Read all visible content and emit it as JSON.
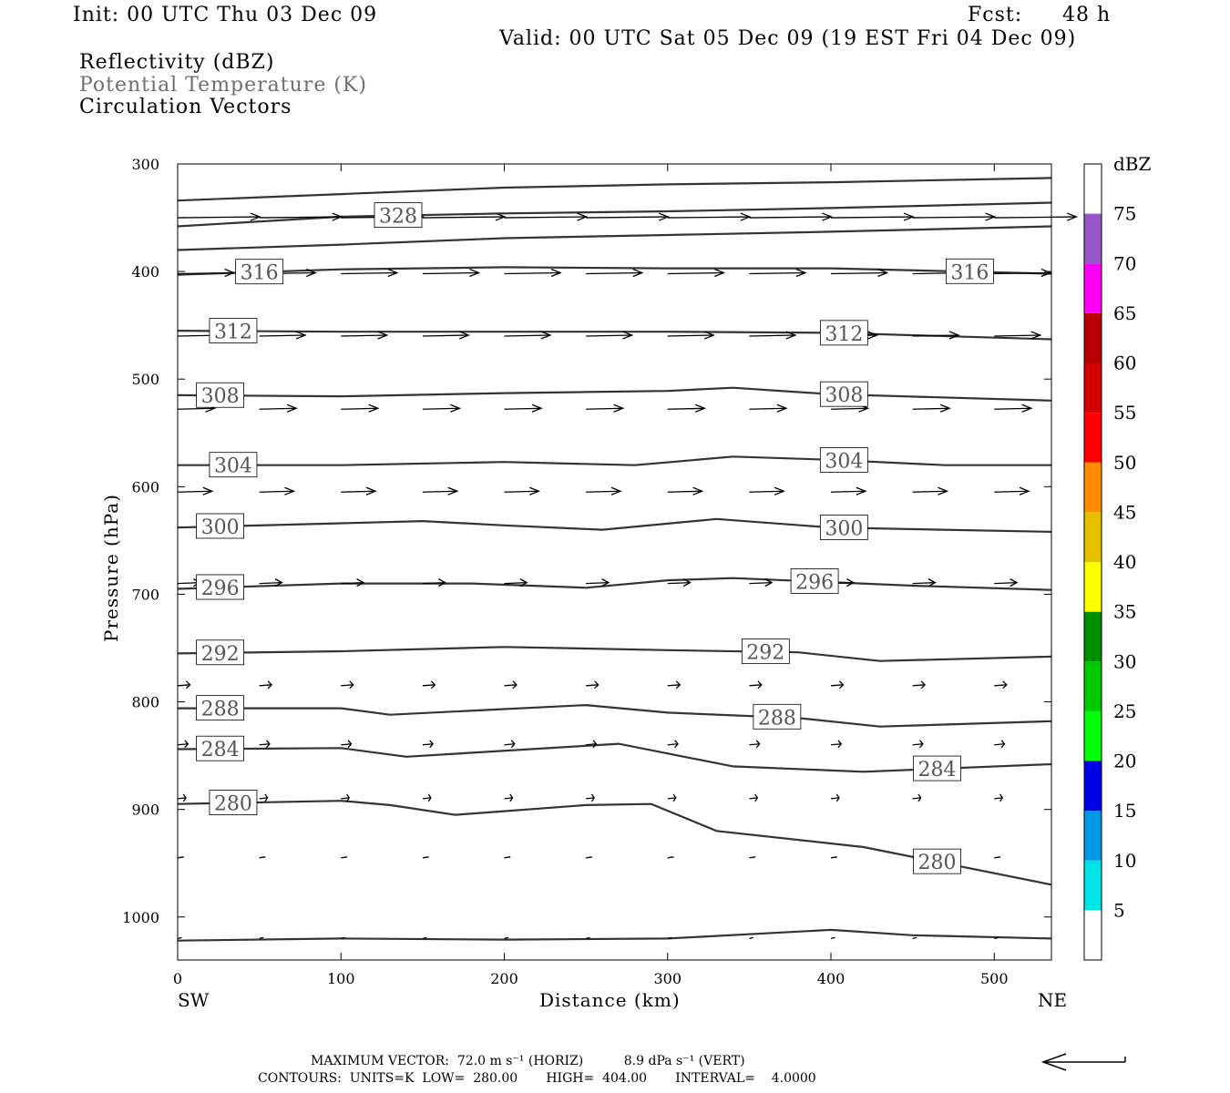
{
  "header": {
    "init": "Init: 00 UTC Thu 03 Dec 09",
    "fcst_label": "Fcst:",
    "fcst_value": "48 h",
    "valid": "Valid: 00 UTC Sat 05 Dec 09 (19 EST Fri 04 Dec 09)"
  },
  "fields": {
    "reflectivity": "Reflectivity (dBZ)",
    "theta": "Potential Temperature (K)",
    "vectors": "Circulation Vectors"
  },
  "footer": {
    "max_vector": "MAXIMUM VECTOR:  72.0 m s⁻¹ (HORIZ)          8.9 dPa s⁻¹ (VERT)",
    "contours": "CONTOURS:  UNITS=K  LOW=  280.00       HIGH=  404.00       INTERVAL=    4.0000"
  },
  "colors": {
    "contour": "#333333",
    "vector": "#000000",
    "scale": [
      "#00e5e5",
      "#0099e6",
      "#0000e6",
      "#00ff00",
      "#00c800",
      "#008c00",
      "#ffff00",
      "#e6c000",
      "#ff8c00",
      "#ff0000",
      "#d40000",
      "#b40000",
      "#ff00ff",
      "#9955cc"
    ]
  },
  "chart_data": {
    "type": "cross-section",
    "xlabel": "Distance (km)",
    "ylabel": "Pressure (hPa)",
    "xlim": [
      0,
      535
    ],
    "ylim": [
      300,
      1040
    ],
    "x_ticks": [
      "0",
      "100",
      "200",
      "300",
      "400",
      "500"
    ],
    "y_ticks": [
      "300",
      "400",
      "500",
      "600",
      "700",
      "800",
      "900",
      "1000"
    ],
    "x_end_labels": {
      "left": "SW",
      "right": "NE"
    },
    "colorbar": {
      "unit": "dBZ",
      "labels": [
        "5",
        "10",
        "15",
        "20",
        "25",
        "30",
        "35",
        "40",
        "45",
        "50",
        "55",
        "60",
        "65",
        "70",
        "75"
      ]
    },
    "contours": [
      {
        "label": "",
        "pts": [
          [
            0,
            334
          ],
          [
            100,
            328
          ],
          [
            200,
            322
          ],
          [
            300,
            319
          ],
          [
            400,
            317
          ],
          [
            535,
            313
          ]
        ]
      },
      {
        "label": "328",
        "label_x": 135,
        "pts": [
          [
            0,
            358
          ],
          [
            100,
            349
          ],
          [
            200,
            346
          ],
          [
            300,
            344
          ],
          [
            400,
            341
          ],
          [
            535,
            336
          ]
        ]
      },
      {
        "label": "",
        "pts": [
          [
            0,
            380
          ],
          [
            100,
            375
          ],
          [
            200,
            369
          ],
          [
            300,
            366
          ],
          [
            400,
            363
          ],
          [
            535,
            358
          ]
        ]
      },
      {
        "label": "316",
        "label_xs": [
          50,
          485
        ],
        "pts": [
          [
            0,
            403
          ],
          [
            100,
            398
          ],
          [
            200,
            396
          ],
          [
            300,
            397
          ],
          [
            400,
            397
          ],
          [
            535,
            402
          ]
        ]
      },
      {
        "label": "312",
        "label_xs": [
          34,
          408
        ],
        "pts": [
          [
            0,
            455
          ],
          [
            100,
            456
          ],
          [
            200,
            456
          ],
          [
            300,
            456
          ],
          [
            400,
            457
          ],
          [
            535,
            463
          ]
        ]
      },
      {
        "label": "308",
        "label_xs": [
          26,
          408
        ],
        "pts": [
          [
            0,
            515
          ],
          [
            100,
            516
          ],
          [
            200,
            513
          ],
          [
            250,
            512
          ],
          [
            300,
            511
          ],
          [
            340,
            508
          ],
          [
            400,
            514
          ],
          [
            535,
            520
          ]
        ]
      },
      {
        "label": "304",
        "label_xs": [
          34,
          408
        ],
        "pts": [
          [
            0,
            580
          ],
          [
            100,
            580
          ],
          [
            200,
            577
          ],
          [
            280,
            580
          ],
          [
            340,
            572
          ],
          [
            400,
            575
          ],
          [
            470,
            580
          ],
          [
            535,
            580
          ]
        ]
      },
      {
        "label": "300",
        "label_xs": [
          26,
          408
        ],
        "pts": [
          [
            0,
            638
          ],
          [
            100,
            634
          ],
          [
            150,
            632
          ],
          [
            200,
            636
          ],
          [
            260,
            640
          ],
          [
            330,
            630
          ],
          [
            400,
            638
          ],
          [
            535,
            642
          ]
        ]
      },
      {
        "label": "296",
        "label_xs": [
          26,
          390
        ],
        "pts": [
          [
            0,
            695
          ],
          [
            100,
            690
          ],
          [
            180,
            690
          ],
          [
            250,
            694
          ],
          [
            300,
            687
          ],
          [
            340,
            685
          ],
          [
            450,
            692
          ],
          [
            535,
            696
          ]
        ]
      },
      {
        "label": "292",
        "label_xs": [
          26,
          360
        ],
        "pts": [
          [
            0,
            755
          ],
          [
            100,
            753
          ],
          [
            200,
            749
          ],
          [
            300,
            752
          ],
          [
            380,
            754
          ],
          [
            430,
            762
          ],
          [
            535,
            758
          ]
        ]
      },
      {
        "label": "288",
        "label_xs": [
          26,
          367
        ],
        "pts": [
          [
            0,
            806
          ],
          [
            100,
            806
          ],
          [
            130,
            812
          ],
          [
            250,
            803
          ],
          [
            300,
            810
          ],
          [
            380,
            815
          ],
          [
            430,
            823
          ],
          [
            535,
            818
          ]
        ]
      },
      {
        "label": "284",
        "label_xs": [
          26,
          465
        ],
        "pts": [
          [
            0,
            844
          ],
          [
            100,
            843
          ],
          [
            140,
            851
          ],
          [
            270,
            839
          ],
          [
            340,
            860
          ],
          [
            420,
            865
          ],
          [
            535,
            858
          ]
        ]
      },
      {
        "label": "280",
        "label_xs": [
          34,
          465
        ],
        "pts": [
          [
            0,
            895
          ],
          [
            100,
            892
          ],
          [
            130,
            896
          ],
          [
            170,
            905
          ],
          [
            250,
            896
          ],
          [
            290,
            895
          ],
          [
            330,
            920
          ],
          [
            420,
            935
          ],
          [
            535,
            970
          ]
        ]
      },
      {
        "label": "",
        "pts": [
          [
            0,
            1022
          ],
          [
            100,
            1020
          ],
          [
            200,
            1021
          ],
          [
            300,
            1020
          ],
          [
            400,
            1012
          ],
          [
            450,
            1017
          ],
          [
            535,
            1020
          ]
        ]
      }
    ],
    "vector_rows": [
      {
        "p": 350,
        "dx": 50,
        "mag": 1.0
      },
      {
        "p": 402,
        "dx": 38,
        "mag": 0.9
      },
      {
        "p": 460,
        "dx": 35,
        "mag": 0.8
      },
      {
        "p": 528,
        "dx": 30,
        "mag": 0.75
      },
      {
        "p": 605,
        "dx": 30,
        "mag": 0.7
      },
      {
        "p": 690,
        "dx": 25,
        "mag": 0.55
      },
      {
        "p": 785,
        "dx": 25,
        "mag": 0.3
      },
      {
        "p": 840,
        "dx": 25,
        "mag": 0.25
      },
      {
        "p": 890,
        "dx": 25,
        "mag": 0.2
      },
      {
        "p": 945,
        "dx": 25,
        "mag": 0.15
      },
      {
        "p": 1020,
        "dx": 25,
        "mag": 0.1
      }
    ]
  }
}
